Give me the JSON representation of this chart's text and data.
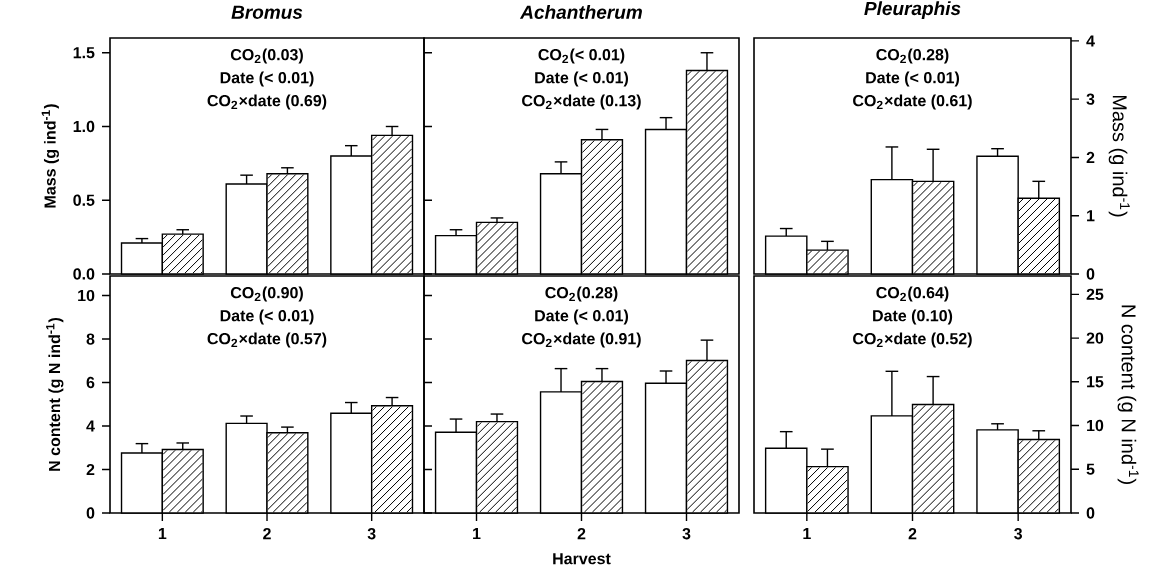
{
  "chart_data": [
    {
      "type": "bar",
      "title": "Bromus",
      "ylabel": "Mass (g ind$^{-1}$)",
      "categories": [
        "1",
        "2",
        "3"
      ],
      "tick_labels": "y",
      "ylim": [
        0,
        1.6
      ],
      "yticks": [
        {
          "value": 0,
          "label": "0.0"
        },
        0.5,
        {
          "value": 1,
          "label": "1.0"
        },
        1.5
      ],
      "annotations": [
        "CO$_{2}$(0.03)",
        "Date (< 0.01)",
        "CO$_{2}$×date (0.69)"
      ],
      "series": [
        {
          "color": "#ffffff",
          "values": [
            0.21,
            0.61,
            0.8
          ],
          "errors": [
            [
              0.21,
              0.24
            ],
            [
              0.61,
              0.67
            ],
            [
              0.8,
              0.87
            ]
          ]
        },
        {
          "color": "#000000",
          "values": [
            0.27,
            0.68,
            0.94
          ],
          "errors": [
            [
              0.27,
              0.3
            ],
            [
              0.68,
              0.72
            ],
            [
              0.94,
              1.0
            ]
          ]
        }
      ]
    },
    {
      "type": "bar",
      "title": "Achantherum",
      "categories": [
        "1",
        "2",
        "3"
      ],
      "tick_labels": false,
      "ylim": [
        0,
        1.6
      ],
      "yticks": [
        {
          "value": 0,
          "label": null
        },
        {
          "value": 0.5,
          "label": null
        },
        {
          "value": 1,
          "label": null
        },
        {
          "value": 1.5,
          "label": null
        }
      ],
      "annotations": [
        "CO$_{2}$(< 0.01)",
        "Date (< 0.01)",
        "CO$_{2}$×date (0.13)"
      ],
      "series": [
        {
          "color": "#ffffff",
          "values": [
            0.26,
            0.68,
            0.98
          ],
          "errors": [
            [
              0.26,
              0.3
            ],
            [
              0.68,
              0.76
            ],
            [
              0.98,
              1.06
            ]
          ]
        },
        {
          "color": "#000000",
          "values": [
            0.35,
            0.91,
            1.38
          ],
          "errors": [
            [
              0.35,
              0.38
            ],
            [
              0.91,
              0.98
            ],
            [
              1.38,
              1.5
            ]
          ]
        }
      ]
    },
    {
      "type": "bar",
      "title": "Pleuraphis",
      "y2label": "Mass (g ind$^{-1}$)",
      "categories": [
        "1",
        "2",
        "3"
      ],
      "tick_labels": "y",
      "y2lim": [
        0,
        4.05
      ],
      "y2ticks": [
        0,
        1,
        2,
        3,
        4
      ],
      "annotations": [
        "CO$_{2}$(0.28)",
        "Date (< 0.01)",
        "CO$_{2}$×date (0.61)"
      ],
      "series": [
        {
          "color": "#ffffff",
          "axis": "y2",
          "values": [
            0.65,
            1.62,
            2.02
          ],
          "errors": [
            [
              0.65,
              0.78
            ],
            [
              1.62,
              2.18
            ],
            [
              2.02,
              2.15
            ]
          ]
        },
        {
          "color": "#000000",
          "axis": "y2",
          "values": [
            0.41,
            1.59,
            1.3
          ],
          "errors": [
            [
              0.41,
              0.56
            ],
            [
              1.59,
              2.14
            ],
            [
              1.3,
              1.59
            ]
          ]
        }
      ]
    },
    {
      "type": "bar",
      "ylabel": "N content (g N ind$^{-1}$)",
      "categories": [
        "1",
        "2",
        "3"
      ],
      "ylim": [
        0,
        10.9
      ],
      "yticks": [
        0,
        2,
        4,
        6,
        8,
        10
      ],
      "annotations": [
        "CO$_{2}$(0.90)",
        "Date (< 0.01)",
        "CO$_{2}$×date (0.57)"
      ],
      "series": [
        {
          "color": "#ffffff",
          "values": [
            2.76,
            4.12,
            4.59
          ],
          "errors": [
            [
              2.76,
              3.19
            ],
            [
              4.12,
              4.46
            ],
            [
              4.59,
              5.08
            ]
          ]
        },
        {
          "color": "#000000",
          "values": [
            2.92,
            3.69,
            4.93
          ],
          "errors": [
            [
              2.92,
              3.22
            ],
            [
              3.69,
              3.95
            ],
            [
              4.93,
              5.31
            ]
          ]
        }
      ]
    },
    {
      "type": "bar",
      "xlabel": "Harvest",
      "categories": [
        "1",
        "2",
        "3"
      ],
      "tick_labels": "x",
      "ylim": [
        0,
        10.9
      ],
      "yticks": [
        {
          "value": 0,
          "label": null
        },
        {
          "value": 2,
          "label": null
        },
        {
          "value": 4,
          "label": null
        },
        {
          "value": 6,
          "label": null
        },
        {
          "value": 8,
          "label": null
        },
        {
          "value": 10,
          "label": null
        }
      ],
      "annotations": [
        "CO$_{2}$(0.28)",
        "Date (< 0.01)",
        "CO$_{2}$×date (0.91)"
      ],
      "series": [
        {
          "color": "#ffffff",
          "values": [
            3.71,
            5.57,
            5.97
          ],
          "errors": [
            [
              3.71,
              4.32
            ],
            [
              5.57,
              6.64
            ],
            [
              5.97,
              6.53
            ]
          ]
        },
        {
          "color": "#000000",
          "values": [
            4.2,
            6.05,
            7.01
          ],
          "errors": [
            [
              4.2,
              4.55
            ],
            [
              6.05,
              6.64
            ],
            [
              7.01,
              7.95
            ]
          ]
        }
      ]
    },
    {
      "type": "bar",
      "y2label": "N content (g N ind$^{-1}$)",
      "categories": [
        "1",
        "2",
        "3"
      ],
      "y2lim": [
        0,
        27.1
      ],
      "y2ticks": [
        0,
        5,
        10,
        15,
        20,
        25
      ],
      "annotations": [
        "CO$_{2}$(0.64)",
        "Date (0.10)",
        "CO$_{2}$×date (0.52)"
      ],
      "series": [
        {
          "color": "#ffffff",
          "axis": "y2",
          "values": [
            7.4,
            11.1,
            9.5
          ],
          "errors": [
            [
              7.4,
              9.3
            ],
            [
              11.1,
              16.2
            ],
            [
              9.5,
              10.2
            ]
          ]
        },
        {
          "color": "#000000",
          "axis": "y2",
          "values": [
            5.3,
            12.4,
            8.4
          ],
          "errors": [
            [
              5.3,
              7.3
            ],
            [
              12.4,
              15.6
            ],
            [
              8.4,
              9.4
            ]
          ]
        }
      ]
    }
  ]
}
